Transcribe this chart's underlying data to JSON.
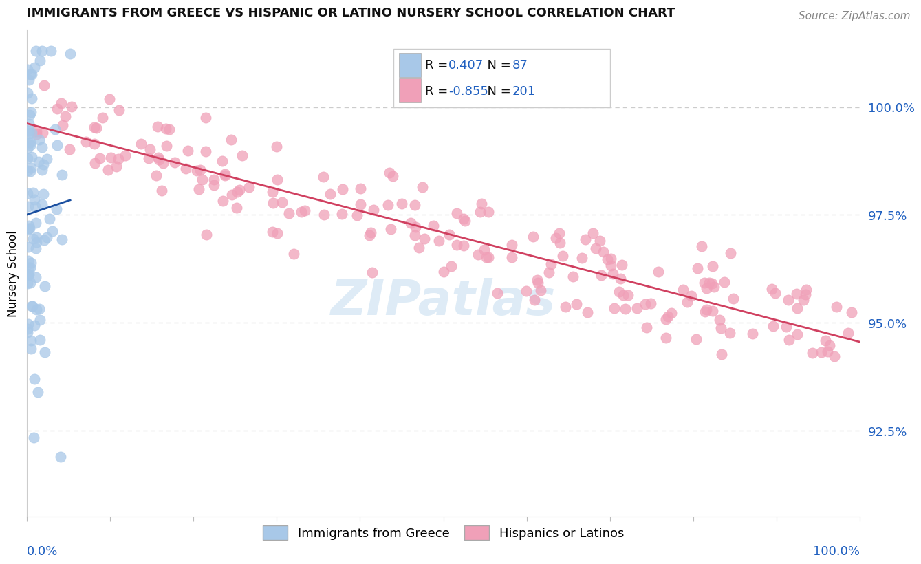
{
  "title": "IMMIGRANTS FROM GREECE VS HISPANIC OR LATINO NURSERY SCHOOL CORRELATION CHART",
  "source": "Source: ZipAtlas.com",
  "ylabel": "Nursery School",
  "ytick_values": [
    92.5,
    95.0,
    97.5,
    100.0
  ],
  "ymin": 90.5,
  "ymax": 101.8,
  "xmin": 0.0,
  "xmax": 100.0,
  "legend_r_blue": "0.407",
  "legend_n_blue": "87",
  "legend_r_pink": "-0.855",
  "legend_n_pink": "201",
  "legend_label_blue": "Immigrants from Greece",
  "legend_label_pink": "Hispanics or Latinos",
  "blue_color": "#a8c8e8",
  "pink_color": "#f0a0b8",
  "blue_line_color": "#1a4fa0",
  "pink_line_color": "#d04060",
  "axis_label_color": "#2060c0",
  "title_color": "#111111",
  "source_color": "#888888",
  "watermark_color": "#c8dff0",
  "n_blue": 87,
  "n_pink": 201,
  "blue_seed": 42,
  "pink_seed": 99
}
